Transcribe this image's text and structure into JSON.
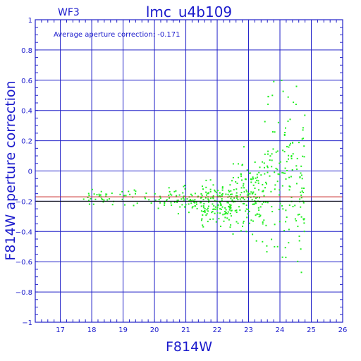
{
  "header": {
    "chip": "WF3",
    "title": "lmc_u4b109"
  },
  "annotation": "Average aperture correction:  -0.171",
  "colors": {
    "axis": "#2020c8",
    "grid": "#2020c8",
    "points": "#22ee22",
    "mean_line": "#c82020",
    "zero_line": "#000000"
  },
  "chart_data": {
    "type": "scatter",
    "xlabel": "F814W",
    "ylabel": "F814W aperture correction",
    "xlim": [
      16.2,
      26.0
    ],
    "ylim": [
      -1.0,
      1.0
    ],
    "x_ticks": [
      17,
      18,
      19,
      20,
      21,
      22,
      23,
      24,
      25,
      26
    ],
    "y_ticks": [
      -1,
      -0.8,
      -0.6,
      -0.4,
      -0.2,
      0,
      0.2,
      0.4,
      0.6,
      0.8,
      1
    ],
    "x_tick_labels": [
      "17",
      "18",
      "19",
      "20",
      "21",
      "22",
      "23",
      "24",
      "25",
      "26"
    ],
    "y_tick_labels": [
      "−1",
      "−0.8",
      "−0.6",
      "−0.4",
      "−0.2",
      "0",
      "0.2",
      "0.4",
      "0.6",
      "0.8",
      "1"
    ],
    "grid": true,
    "reference_lines": [
      {
        "kind": "average",
        "y": -0.171
      },
      {
        "kind": "baseline",
        "y": -0.2
      }
    ],
    "point_distribution": [
      {
        "x": [
          17.6,
          18.9
        ],
        "y_center": -0.18,
        "y_spread": 0.025,
        "count": 30
      },
      {
        "x": [
          18.9,
          20.5
        ],
        "y_center": -0.18,
        "y_spread": 0.03,
        "count": 35
      },
      {
        "x": [
          20.5,
          21.5
        ],
        "y_center": -0.19,
        "y_spread": 0.04,
        "count": 60
      },
      {
        "x": [
          21.5,
          22.5
        ],
        "y_center": -0.21,
        "y_spread": 0.07,
        "count": 140
      },
      {
        "x": [
          22.5,
          23.5
        ],
        "y_center": -0.16,
        "y_spread": 0.12,
        "count": 140
      },
      {
        "x": [
          23.5,
          24.8
        ],
        "y_center": -0.1,
        "y_spread": 0.28,
        "count": 160
      }
    ]
  }
}
